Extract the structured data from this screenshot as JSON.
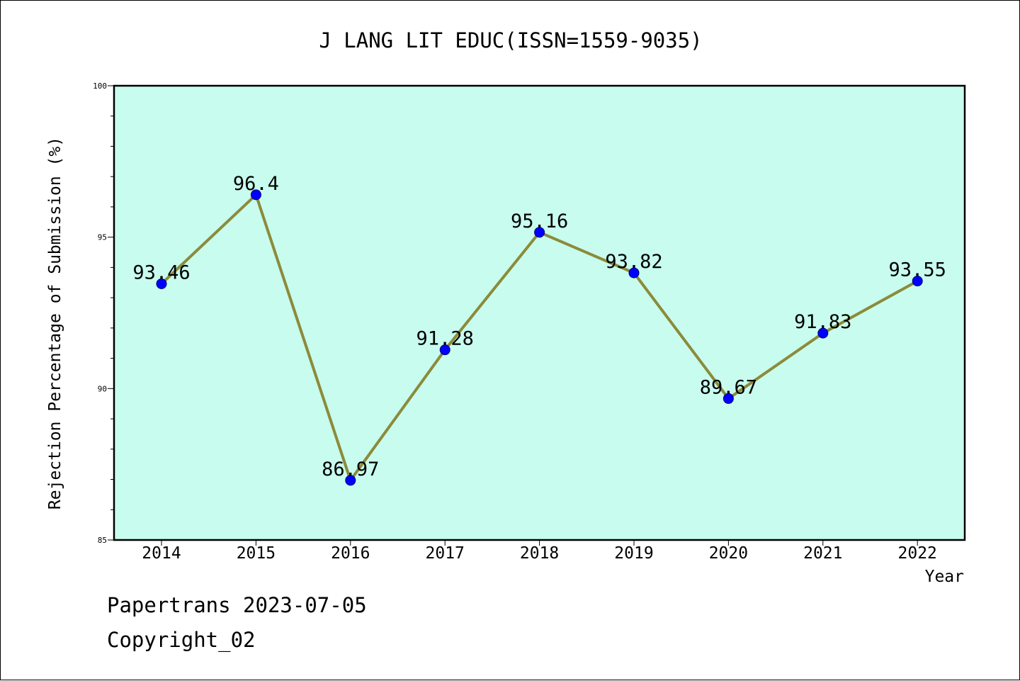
{
  "chart_data": {
    "type": "line",
    "title": "J LANG LIT EDUC(ISSN=1559-9035)",
    "xlabel": "Year",
    "ylabel": "Rejection Percentage of Submission (%)",
    "categories": [
      "2014",
      "2015",
      "2016",
      "2017",
      "2018",
      "2019",
      "2020",
      "2021",
      "2022"
    ],
    "values": [
      93.46,
      96.4,
      86.97,
      91.28,
      95.16,
      93.82,
      89.67,
      91.83,
      93.55
    ],
    "data_labels": [
      "93.46",
      "96.4",
      "86.97",
      "91.28",
      "95.16",
      "93.82",
      "89.67",
      "91.83",
      "93.55"
    ],
    "ylim": [
      85,
      100
    ],
    "yticks": [
      85,
      90,
      95,
      100
    ],
    "grid": false,
    "colors": {
      "plot_background": "#c8fcee",
      "line": "#8b8b3a",
      "marker": "#0000ff"
    }
  },
  "footer": {
    "line1": "Papertrans 2023-07-05",
    "line2": "Copyright_02"
  }
}
